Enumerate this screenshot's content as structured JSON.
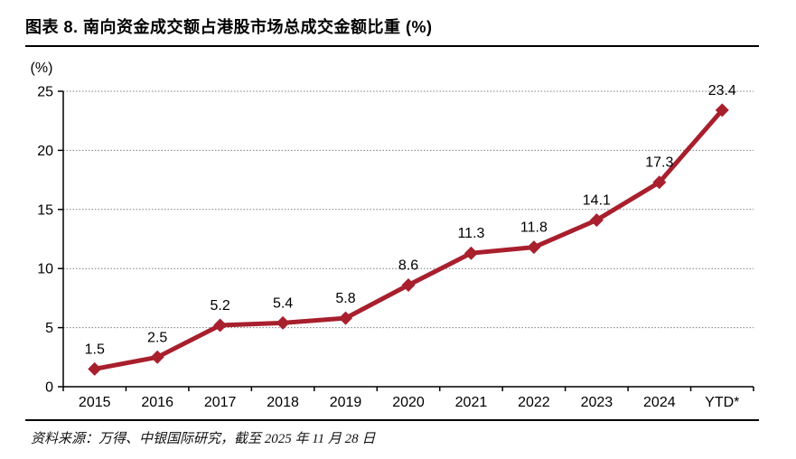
{
  "header": {
    "title": "图表 8. 南向资金成交额占港股市场总成交金额比重 (%)"
  },
  "footer": {
    "source": "资料来源：万得、中银国际研究，截至 2025 年 11 月 28 日"
  },
  "chart_data": {
    "type": "line",
    "title": "南向资金成交额占港股市场总成交金额比重 (%)",
    "categories": [
      "2015",
      "2016",
      "2017",
      "2018",
      "2019",
      "2020",
      "2021",
      "2022",
      "2023",
      "2024",
      "YTD*"
    ],
    "values": [
      1.5,
      2.5,
      5.2,
      5.4,
      5.8,
      8.6,
      11.3,
      11.8,
      14.1,
      17.3,
      23.4
    ],
    "xlabel": "",
    "ylabel": "(%)",
    "ylim": [
      0,
      25
    ],
    "ytick_step": 5,
    "yticks": [
      0,
      5,
      10,
      15,
      20,
      25
    ],
    "grid": "horizontal-dotted",
    "legend": "none",
    "marker": "diamond",
    "value_labels": "above",
    "line_color": "#A81F2D",
    "grid_color": "#7F7F7F",
    "axis_color": "#000000",
    "label_color": "#000000"
  }
}
